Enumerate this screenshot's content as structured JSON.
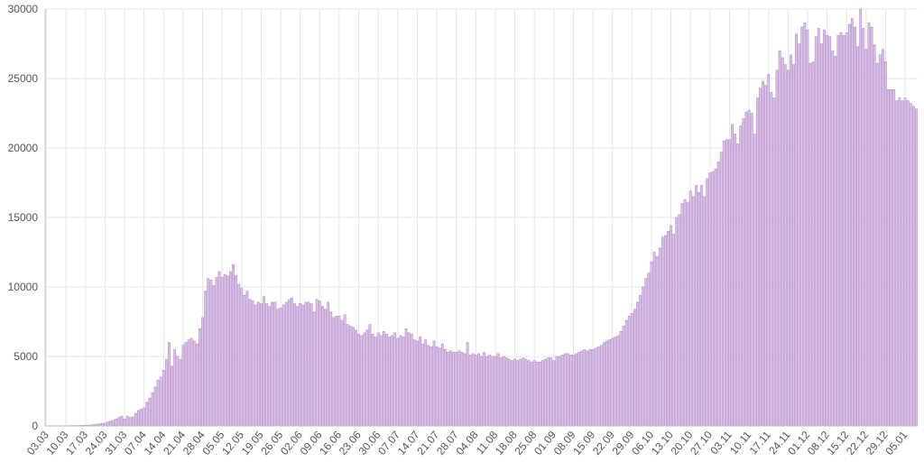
{
  "chart_data": {
    "type": "bar",
    "categories": [
      "03.03",
      null,
      null,
      null,
      null,
      null,
      null,
      "10.03",
      null,
      null,
      null,
      null,
      null,
      null,
      "17.03",
      null,
      null,
      null,
      null,
      null,
      null,
      "24.03",
      null,
      null,
      null,
      null,
      null,
      null,
      "31.03",
      null,
      null,
      null,
      null,
      null,
      null,
      "07.04",
      null,
      null,
      null,
      null,
      null,
      null,
      "14.04",
      null,
      null,
      null,
      null,
      null,
      null,
      "21.04",
      null,
      null,
      null,
      null,
      null,
      null,
      "28.04",
      null,
      null,
      null,
      null,
      null,
      null,
      "05.05",
      null,
      null,
      null,
      null,
      null,
      null,
      "12.05",
      null,
      null,
      null,
      null,
      null,
      null,
      "19.05",
      null,
      null,
      null,
      null,
      null,
      null,
      "26.05",
      null,
      null,
      null,
      null,
      null,
      null,
      "02.06",
      null,
      null,
      null,
      null,
      null,
      null,
      "09.06",
      null,
      null,
      null,
      null,
      null,
      null,
      "16.06",
      null,
      null,
      null,
      null,
      null,
      null,
      "23.06",
      null,
      null,
      null,
      null,
      null,
      null,
      "30.06",
      null,
      null,
      null,
      null,
      null,
      null,
      "07.07",
      null,
      null,
      null,
      null,
      null,
      null,
      "14.07",
      null,
      null,
      null,
      null,
      null,
      null,
      "21.07",
      null,
      null,
      null,
      null,
      null,
      null,
      "28.07",
      null,
      null,
      null,
      null,
      null,
      null,
      "04.08",
      null,
      null,
      null,
      null,
      null,
      null,
      "11.08",
      null,
      null,
      null,
      null,
      null,
      null,
      "18.08",
      null,
      null,
      null,
      null,
      null,
      null,
      "25.08",
      null,
      null,
      null,
      null,
      null,
      null,
      "01.09",
      null,
      null,
      null,
      null,
      null,
      null,
      "08.09",
      null,
      null,
      null,
      null,
      null,
      null,
      "15.09",
      null,
      null,
      null,
      null,
      null,
      null,
      "22.09",
      null,
      null,
      null,
      null,
      null,
      null,
      "29.09",
      null,
      null,
      null,
      null,
      null,
      null,
      "06.10",
      null,
      null,
      null,
      null,
      null,
      null,
      "13.10",
      null,
      null,
      null,
      null,
      null,
      null,
      "20.10",
      null,
      null,
      null,
      null,
      null,
      null,
      "27.10",
      null,
      null,
      null,
      null,
      null,
      null,
      "03.11",
      null,
      null,
      null,
      null,
      null,
      null,
      "10.11",
      null,
      null,
      null,
      null,
      null,
      null,
      "17.11",
      null,
      null,
      null,
      null,
      null,
      null,
      "24.11",
      null,
      null,
      null,
      null,
      null,
      null,
      "01.12",
      null,
      null,
      null,
      null,
      null,
      null,
      "08.12",
      null,
      null,
      null,
      null,
      null,
      null,
      "15.12",
      null,
      null,
      null,
      null,
      null,
      null,
      "22.12",
      null,
      null,
      null,
      null,
      null,
      null,
      "29.12",
      null,
      null,
      null,
      null,
      null,
      null,
      "05.01",
      null,
      null,
      null,
      null
    ],
    "values": [
      3,
      2,
      4,
      3,
      5,
      6,
      8,
      10,
      15,
      20,
      25,
      30,
      35,
      40,
      50,
      60,
      80,
      100,
      120,
      150,
      180,
      200,
      300,
      350,
      400,
      500,
      600,
      700,
      500,
      700,
      600,
      650,
      900,
      1100,
      1200,
      1300,
      1700,
      2000,
      2400,
      2800,
      3300,
      3500,
      4000,
      4800,
      6000,
      4300,
      5500,
      5000,
      4800,
      5800,
      6000,
      6200,
      6300,
      6100,
      5900,
      7000,
      7800,
      9700,
      10600,
      10500,
      10100,
      10700,
      11100,
      10700,
      10900,
      10800,
      11100,
      11600,
      10800,
      10200,
      9900,
      9400,
      9700,
      9100,
      9000,
      8700,
      8900,
      8800,
      9300,
      8800,
      8600,
      8900,
      8900,
      8400,
      8500,
      8700,
      8900,
      9100,
      9200,
      8800,
      8600,
      8800,
      8700,
      8900,
      8900,
      8800,
      8200,
      9100,
      9000,
      8600,
      8400,
      8900,
      8200,
      7800,
      7900,
      7900,
      7600,
      8000,
      7300,
      7200,
      7100,
      6900,
      6600,
      6500,
      6700,
      6900,
      7300,
      6600,
      6400,
      6700,
      6500,
      6800,
      6600,
      6400,
      6500,
      6700,
      6300,
      6500,
      6400,
      7000,
      6700,
      6600,
      6200,
      6100,
      6400,
      5900,
      6200,
      5800,
      5700,
      6100,
      5700,
      5600,
      5900,
      5500,
      5300,
      5400,
      5300,
      5300,
      5400,
      5300,
      5200,
      6000,
      5100,
      5200,
      5100,
      5200,
      5000,
      5300,
      5000,
      5100,
      5000,
      5000,
      5200,
      4900,
      5000,
      4900,
      4800,
      4700,
      4800,
      4700,
      4800,
      4900,
      4800,
      4700,
      4600,
      4700,
      4600,
      4600,
      4700,
      4800,
      4900,
      4900,
      4700,
      5000,
      5000,
      5100,
      5200,
      5200,
      5100,
      5100,
      5200,
      5300,
      5400,
      5500,
      5400,
      5500,
      5500,
      5600,
      5700,
      5800,
      6000,
      6100,
      6200,
      6300,
      6400,
      6500,
      6800,
      7200,
      7600,
      7900,
      8100,
      8400,
      8900,
      9400,
      10000,
      10600,
      11000,
      11800,
      12500,
      12200,
      12800,
      13600,
      13700,
      14000,
      14400,
      13800,
      15000,
      15200,
      16000,
      16300,
      16100,
      16900,
      16500,
      17300,
      16800,
      17300,
      16500,
      17800,
      18200,
      18300,
      18500,
      19000,
      19700,
      20500,
      20600,
      20600,
      21700,
      21000,
      20300,
      21600,
      22100,
      22600,
      22700,
      22500,
      21000,
      23600,
      24300,
      24800,
      24500,
      25300,
      24000,
      23600,
      25600,
      27000,
      26500,
      26000,
      25600,
      26700,
      26000,
      28200,
      27500,
      28700,
      29000,
      28500,
      26100,
      26200,
      28000,
      28600,
      27500,
      28500,
      28100,
      28000,
      27000,
      26600,
      28100,
      28300,
      28100,
      28300,
      28900,
      29300,
      28700,
      27300,
      30000,
      28600,
      27100,
      29000,
      28700,
      27400,
      26100,
      26700,
      27100,
      26200,
      24200,
      24200,
      24200,
      23400,
      23600,
      23400,
      23600,
      23400,
      23200,
      23000,
      22800
    ],
    "color": "#dcc4e8",
    "edge_color": "#b48cc8",
    "ylim": [
      0,
      30000
    ],
    "yticks": [
      0,
      5000,
      10000,
      15000,
      20000,
      25000,
      30000
    ],
    "grid": true
  }
}
